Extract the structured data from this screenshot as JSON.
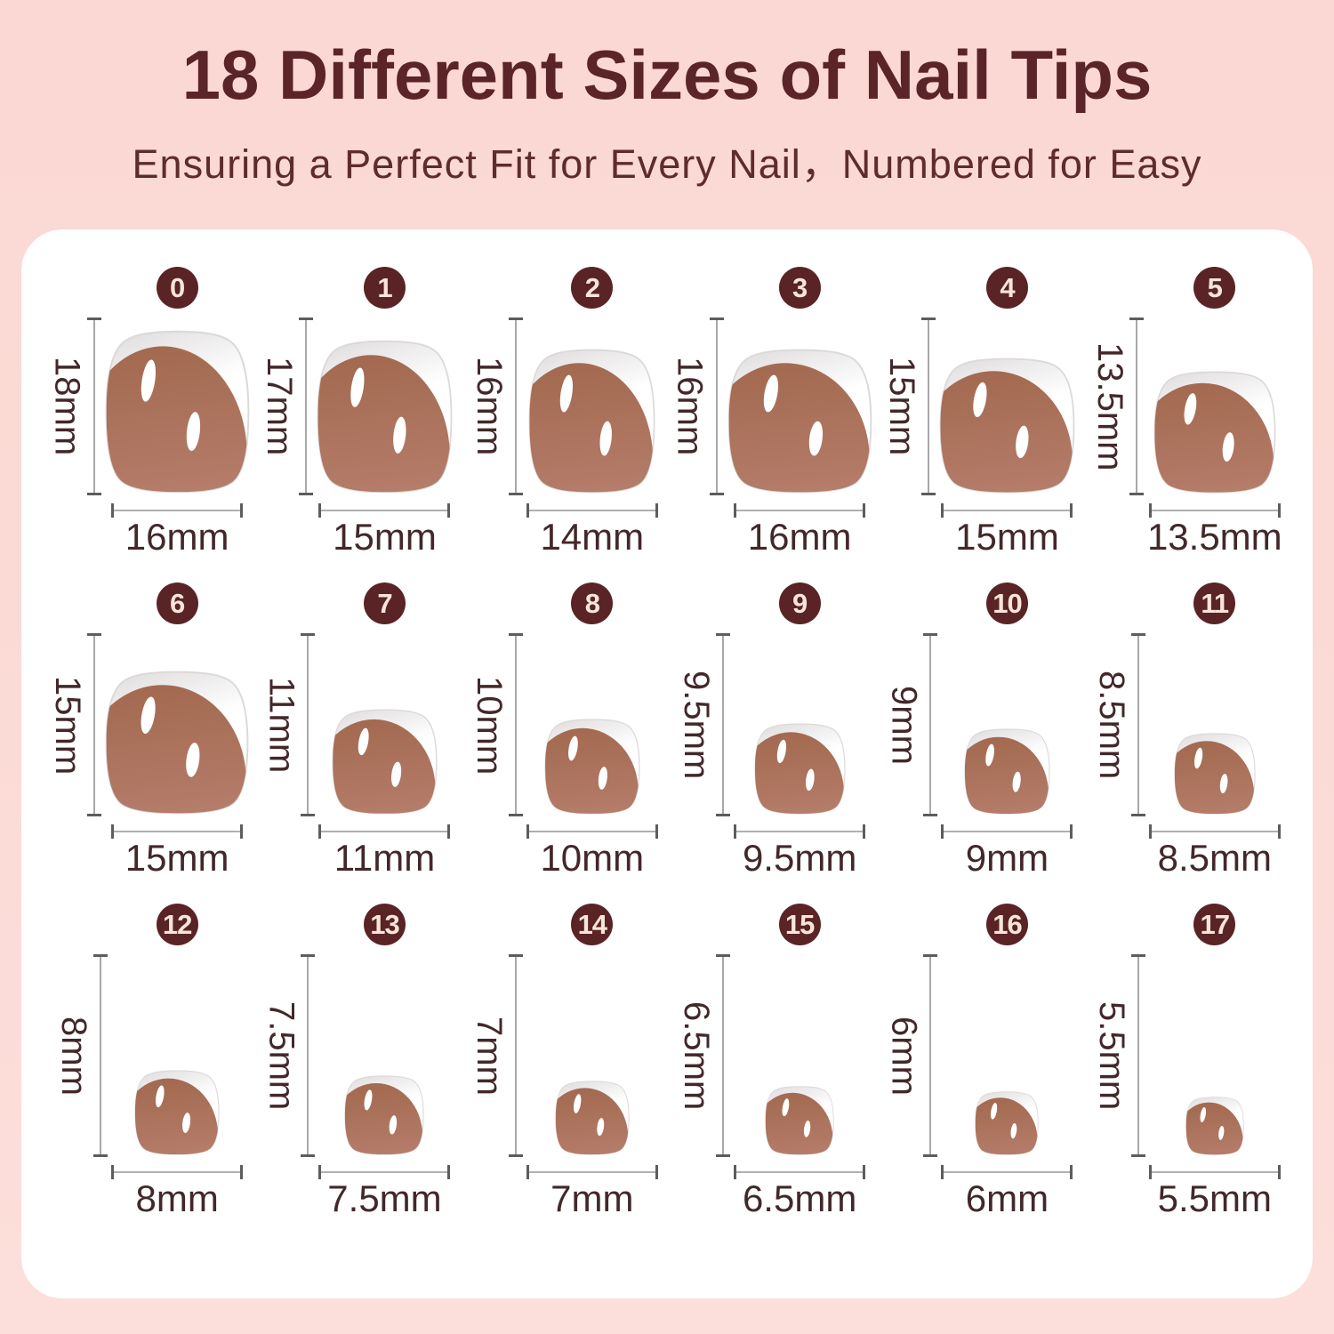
{
  "header": {
    "title": "18 Different Sizes of Nail Tips",
    "subtitle": "Ensuring a Perfect Fit for Every Nail，Numbered for Easy"
  },
  "colors": {
    "background_pink": "#fbdad5",
    "panel_white": "#ffffff",
    "title_text": "#5a2428",
    "badge_background": "#5a2325",
    "badge_text": "#f7e5da",
    "measure_line_gray": "#a8a8a8",
    "label_text": "#42282a",
    "nail_body_brown": "#b07763",
    "nail_tip_white": "#ffffff"
  },
  "nails": [
    {
      "number": "0",
      "height": "18mm",
      "width": "16mm",
      "height_mm": 18,
      "width_mm": 16
    },
    {
      "number": "1",
      "height": "17mm",
      "width": "15mm",
      "height_mm": 17,
      "width_mm": 15
    },
    {
      "number": "2",
      "height": "16mm",
      "width": "14mm",
      "height_mm": 16,
      "width_mm": 14
    },
    {
      "number": "3",
      "height": "16mm",
      "width": "16mm",
      "height_mm": 16,
      "width_mm": 16
    },
    {
      "number": "4",
      "height": "15mm",
      "width": "15mm",
      "height_mm": 15,
      "width_mm": 15
    },
    {
      "number": "5",
      "height": "13.5mm",
      "width": "13.5mm",
      "height_mm": 13.5,
      "width_mm": 13.5
    },
    {
      "number": "6",
      "height": "15mm",
      "width": "15mm",
      "height_mm": 15,
      "width_mm": 15
    },
    {
      "number": "7",
      "height": "11mm",
      "width": "11mm",
      "height_mm": 11,
      "width_mm": 11
    },
    {
      "number": "8",
      "height": "10mm",
      "width": "10mm",
      "height_mm": 10,
      "width_mm": 10
    },
    {
      "number": "9",
      "height": "9.5mm",
      "width": "9.5mm",
      "height_mm": 9.5,
      "width_mm": 9.5
    },
    {
      "number": "10",
      "height": "9mm",
      "width": "9mm",
      "height_mm": 9,
      "width_mm": 9
    },
    {
      "number": "11",
      "height": "8.5mm",
      "width": "8.5mm",
      "height_mm": 8.5,
      "width_mm": 8.5
    },
    {
      "number": "12",
      "height": "8mm",
      "width": "8mm",
      "height_mm": 8,
      "width_mm": 8
    },
    {
      "number": "13",
      "height": "7.5mm",
      "width": "7.5mm",
      "height_mm": 7.5,
      "width_mm": 7.5
    },
    {
      "number": "14",
      "height": "7mm",
      "width": "7mm",
      "height_mm": 7,
      "width_mm": 7
    },
    {
      "number": "15",
      "height": "6.5mm",
      "width": "6.5mm",
      "height_mm": 6.5,
      "width_mm": 6.5
    },
    {
      "number": "16",
      "height": "6mm",
      "width": "6mm",
      "height_mm": 6,
      "width_mm": 6
    },
    {
      "number": "17",
      "height": "5.5mm",
      "width": "5.5mm",
      "height_mm": 5.5,
      "width_mm": 5.5
    }
  ]
}
